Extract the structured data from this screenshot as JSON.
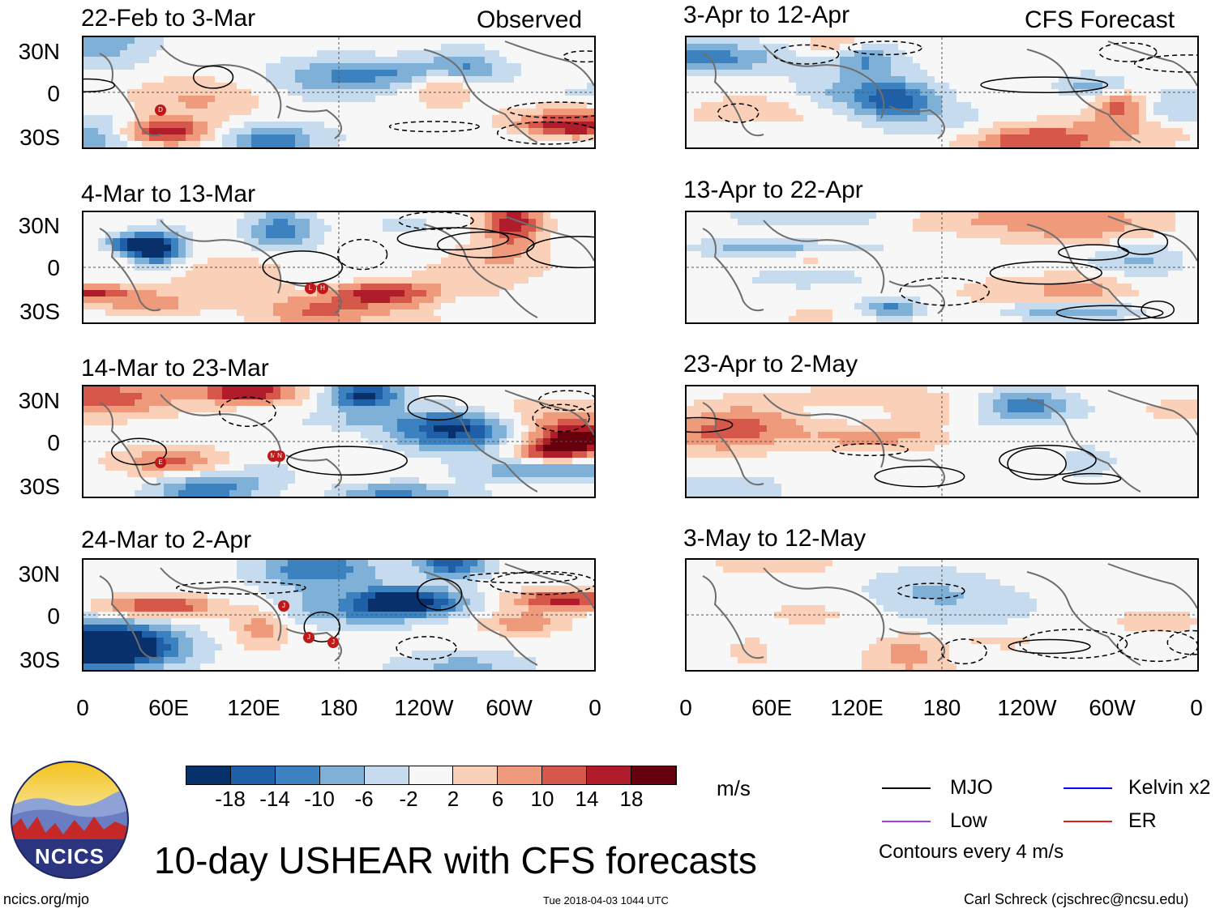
{
  "header": {
    "left_label": "Observed",
    "right_label": "CFS Forecast"
  },
  "panels": {
    "observed": [
      {
        "title": "22-Feb to 3-Mar"
      },
      {
        "title": "4-Mar to 13-Mar"
      },
      {
        "title": "14-Mar to 23-Mar"
      },
      {
        "title": "24-Mar to 2-Apr"
      }
    ],
    "forecast": [
      {
        "title": "3-Apr to 12-Apr"
      },
      {
        "title": "13-Apr to 22-Apr"
      },
      {
        "title": "23-Apr to 2-May"
      },
      {
        "title": "3-May to 12-May"
      }
    ]
  },
  "axes": {
    "lat_labels": [
      "30N",
      "0",
      "30S"
    ],
    "lon_labels": [
      "0",
      "60E",
      "120E",
      "180",
      "120W",
      "60W",
      "0"
    ]
  },
  "colorbar": {
    "labels": [
      "-18",
      "-14",
      "-10",
      "-6",
      "-2",
      "2",
      "6",
      "10",
      "14",
      "18"
    ],
    "colors": [
      "#08306b",
      "#1f5fa8",
      "#3c82c0",
      "#7fb1d8",
      "#c6dcee",
      "#f7f7f7",
      "#fbd0b8",
      "#ef9a7a",
      "#d6584b",
      "#b01c2a",
      "#67000d"
    ],
    "unit": "m/s"
  },
  "legend": {
    "items": [
      {
        "label": "MJO",
        "color": "#000000"
      },
      {
        "label": "Kelvin x2",
        "color": "#0000ff"
      },
      {
        "label": "Low",
        "color": "#a040e0"
      },
      {
        "label": "ER",
        "color": "#e02020"
      }
    ],
    "contour_note": "Contours every 4 m/s"
  },
  "storm_markers": {
    "panel1": [
      "D"
    ],
    "panel2": [
      "L",
      "H"
    ],
    "panel3": [
      "E",
      "M",
      "N"
    ],
    "panel4": [
      "J",
      "J",
      "J"
    ]
  },
  "footer": {
    "logo_text": "NCICS",
    "main_title": "10-day USHEAR with CFS forecasts",
    "website": "ncics.org/mjo",
    "timestamp": "Tue 2018-04-03 1044 UTC",
    "author": "Carl Schreck (cjschrec@ncsu.edu)"
  }
}
